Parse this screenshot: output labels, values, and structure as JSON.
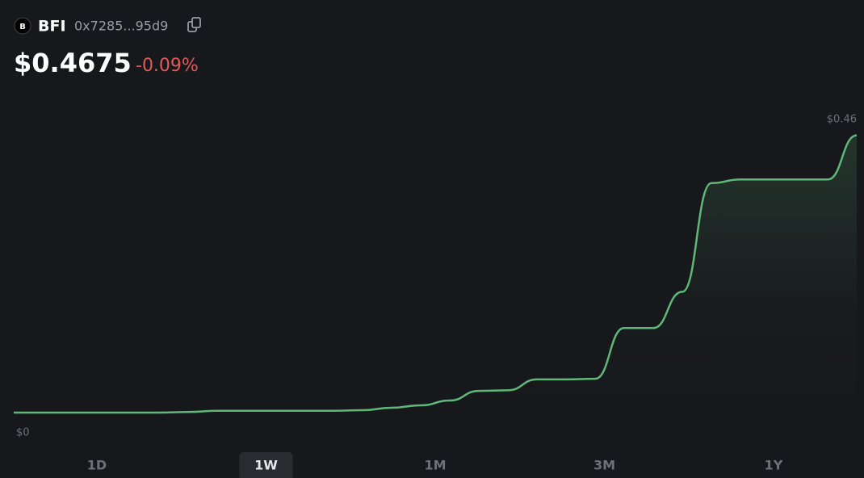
{
  "header": {
    "icon_letter": "B",
    "symbol": "BFI",
    "address": "0x7285...95d9",
    "price": "$0.4675",
    "change": "-0.09%"
  },
  "chart_data": {
    "type": "line",
    "color": "#5fb878",
    "values": [
      0,
      0,
      0,
      0,
      0,
      0,
      0.001,
      0.003,
      0.003,
      0.003,
      0.003,
      0.003,
      0.004,
      0.008,
      0.012,
      0.02,
      0.036,
      0.037,
      0.055,
      0.055,
      0.056,
      0.14,
      0.14,
      0.2,
      0.38,
      0.386,
      0.386,
      0.386,
      0.386,
      0.459
    ],
    "ylim": [
      0,
      0.5
    ],
    "yticks": [
      {
        "value": 0,
        "label": "$0"
      },
      {
        "value": 0.46,
        "label": "$0.46"
      }
    ]
  },
  "range_buttons": [
    "1D",
    "1W",
    "1M",
    "3M",
    "1Y"
  ],
  "selected_range": 1
}
